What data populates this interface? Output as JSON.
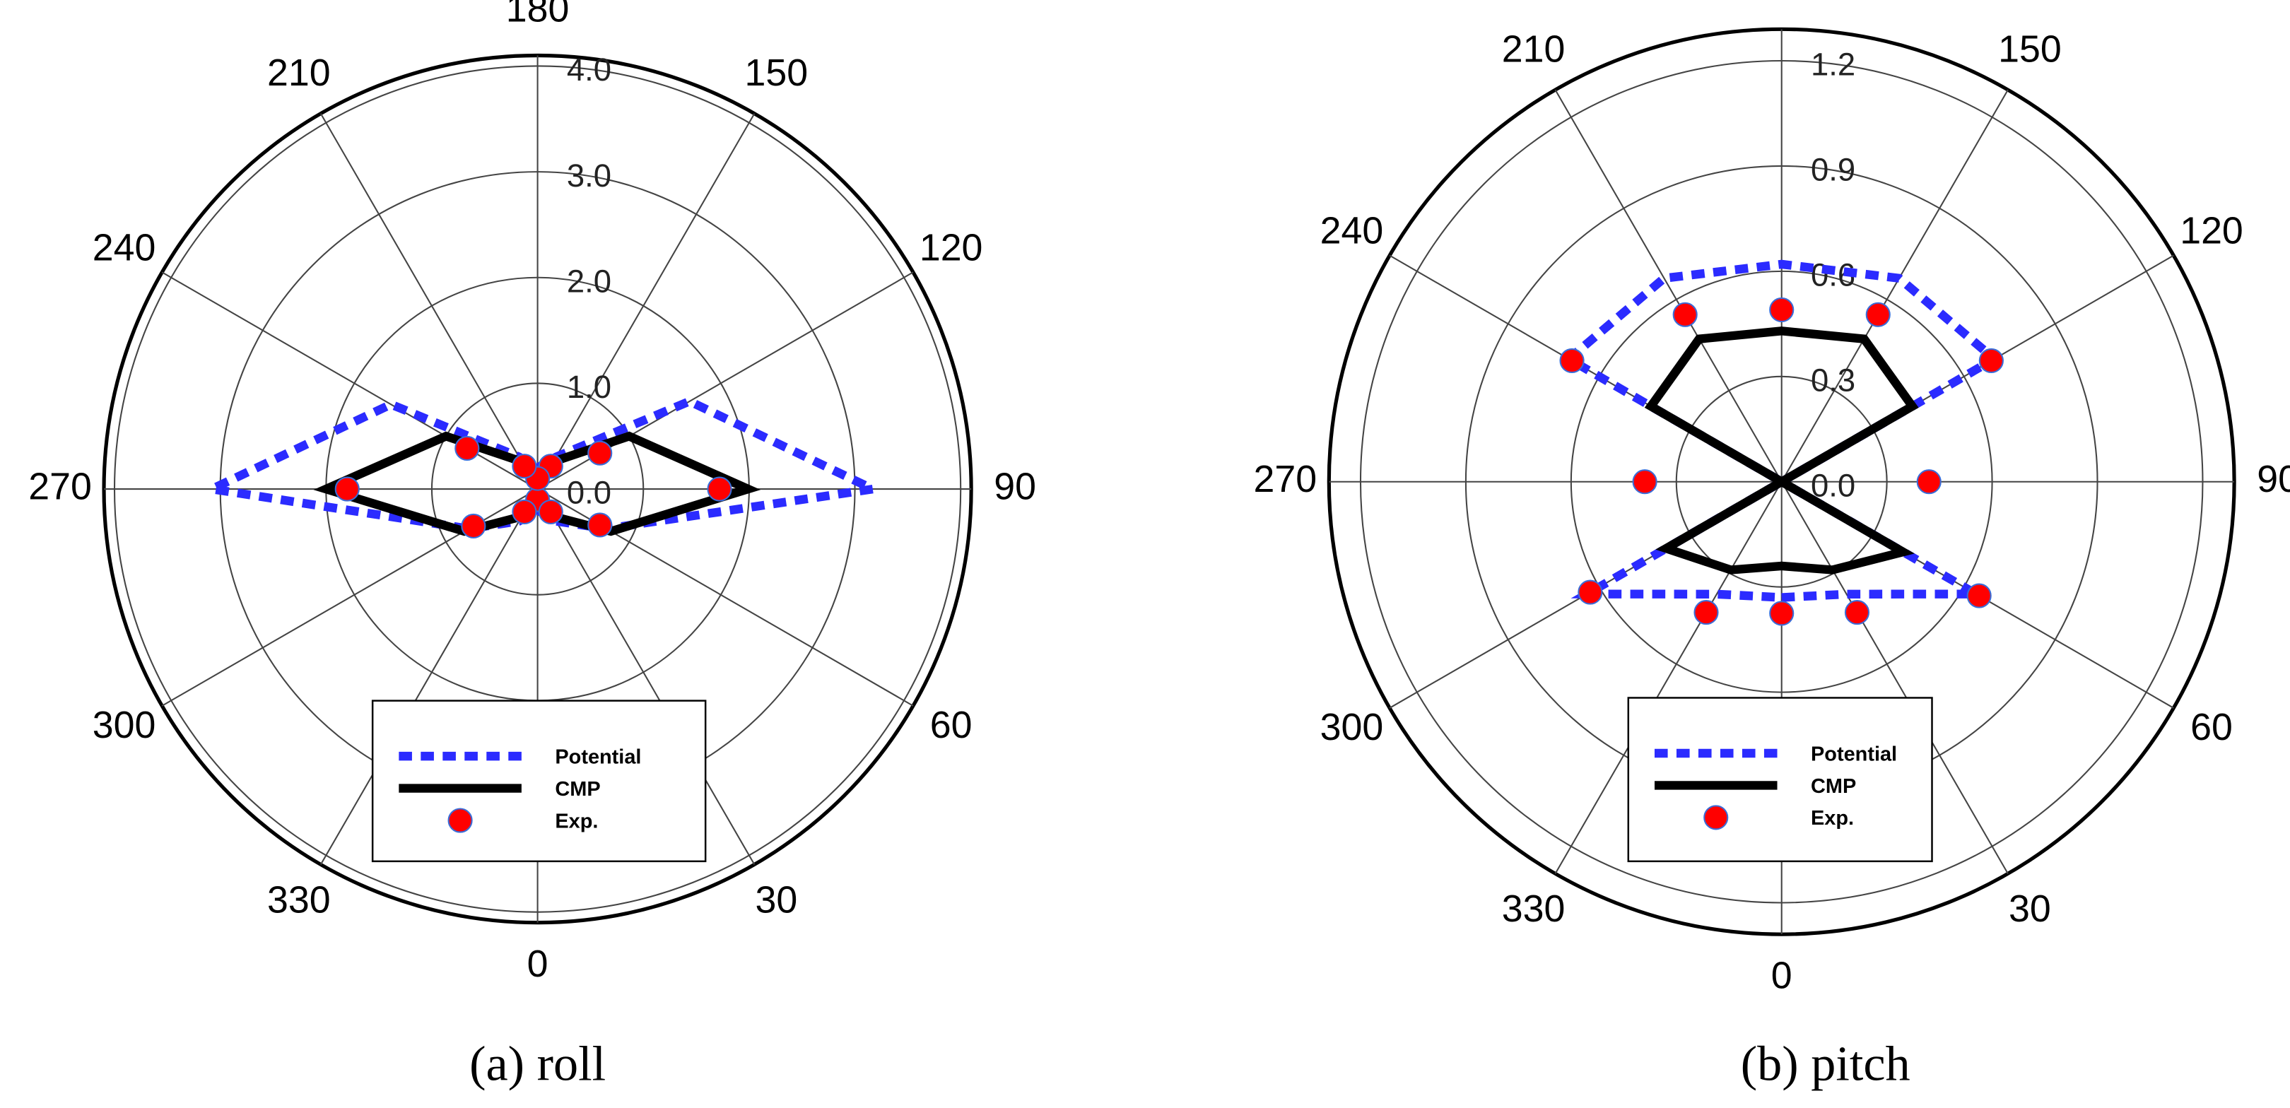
{
  "chart_data": [
    {
      "type": "polar",
      "caption": "(a) roll",
      "theta": [
        0,
        30,
        60,
        90,
        120,
        150,
        180,
        210,
        240,
        270,
        300,
        330
      ],
      "thetaticks": [
        0,
        30,
        60,
        90,
        120,
        150,
        180,
        210,
        240,
        270,
        300,
        330
      ],
      "rlim": [
        0,
        4.1
      ],
      "rticks": [
        {
          "value": 0,
          "label": "0.0"
        },
        {
          "value": 1,
          "label": "1.0"
        },
        {
          "value": 2,
          "label": "2.0"
        },
        {
          "value": 3,
          "label": "3.0"
        },
        {
          "value": 4,
          "label": "4.0"
        }
      ],
      "series": [
        {
          "name": "Potential",
          "color": "#2b2bff",
          "style": "dotted",
          "values": [
            0.2,
            0.35,
            0.75,
            3.17,
            1.66,
            0.35,
            0.2,
            0.35,
            1.6,
            3.08,
            0.75,
            0.35
          ]
        },
        {
          "name": "CMP",
          "color": "#000000",
          "style": "solid",
          "values": [
            0.1,
            0.3,
            0.8,
            1.99,
            1.0,
            0.3,
            0.1,
            0.3,
            1.0,
            2.0,
            0.8,
            0.3
          ]
        },
        {
          "name": "Exp.",
          "color": "#ff0000",
          "style": "marker",
          "values": [
            0.1,
            0.25,
            0.68,
            1.72,
            0.68,
            0.25,
            0.1,
            0.25,
            0.77,
            1.8,
            0.7,
            0.25
          ]
        }
      ]
    },
    {
      "type": "polar",
      "caption": "(b) pitch",
      "theta": [
        0,
        30,
        60,
        90,
        120,
        150,
        180,
        210,
        240,
        270,
        300,
        330
      ],
      "thetaticks": [
        0,
        30,
        60,
        90,
        120,
        150,
        180,
        210,
        240,
        270,
        300,
        330
      ],
      "rlim": [
        0,
        1.29
      ],
      "rticks": [
        {
          "value": 0,
          "label": "0.0"
        },
        {
          "value": 0.3,
          "label": "0.3"
        },
        {
          "value": 0.6,
          "label": "0.6"
        },
        {
          "value": 0.9,
          "label": "0.9"
        },
        {
          "value": 1.2,
          "label": "1.2"
        }
      ],
      "series": [
        {
          "name": "Potential",
          "color": "#2b2bff",
          "style": "dotted",
          "values": [
            0.33,
            0.37,
            0.64,
            0,
            0.7,
            0.67,
            0.62,
            0.67,
            0.7,
            0,
            0.64,
            0.37
          ]
        },
        {
          "name": "CMP",
          "color": "#000000",
          "style": "solid",
          "values": [
            0.24,
            0.29,
            0.4,
            0,
            0.43,
            0.47,
            0.43,
            0.47,
            0.43,
            0,
            0.38,
            0.29
          ]
        },
        {
          "name": "Exp.",
          "color": "#ff0000",
          "style": "marker",
          "values": [
            0.375,
            0.43,
            0.65,
            0.42,
            0.69,
            0.55,
            0.49,
            0.55,
            0.69,
            0.39,
            0.63,
            0.43
          ]
        }
      ]
    }
  ]
}
